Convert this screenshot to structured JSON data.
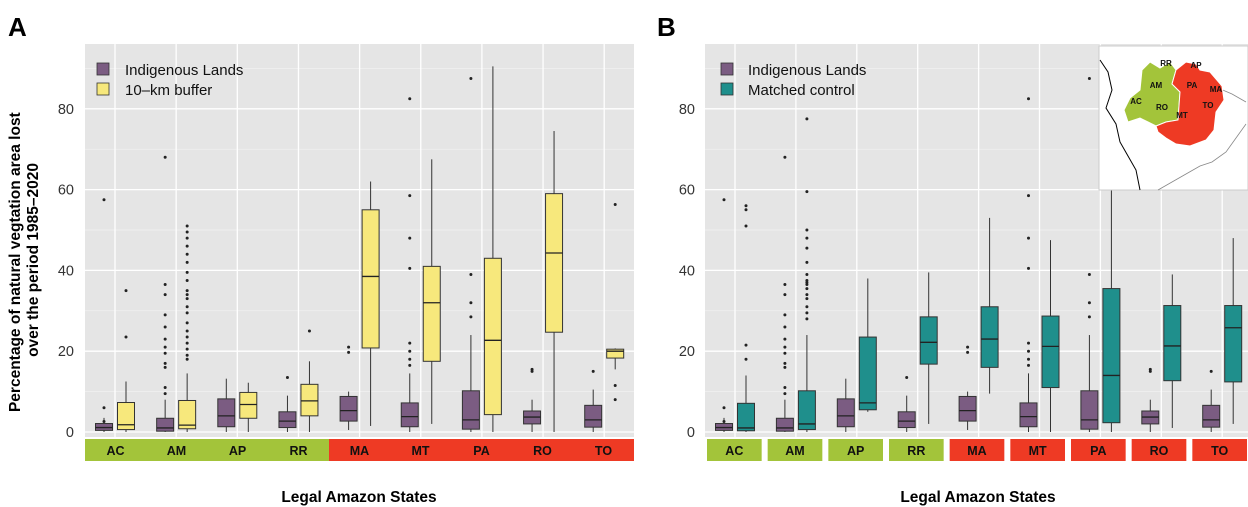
{
  "chart_data": [
    {
      "type": "box",
      "panel_label": "A",
      "ylabel": "Percentage of natural vegtation area lost\nover the period 1985–2020",
      "xlabel": "Legal Amazon States",
      "ylim": [
        0,
        92
      ],
      "yticks": [
        0,
        20,
        40,
        60,
        80
      ],
      "grid": true,
      "legend_position": "top-left",
      "states": [
        {
          "name": "AC",
          "region_color": "#a3c43a"
        },
        {
          "name": "AM",
          "region_color": "#a3c43a"
        },
        {
          "name": "AP",
          "region_color": "#a3c43a"
        },
        {
          "name": "RR",
          "region_color": "#a3c43a"
        },
        {
          "name": "MA",
          "region_color": "#ee3a24"
        },
        {
          "name": "MT",
          "region_color": "#ee3a24"
        },
        {
          "name": "PA",
          "region_color": "#ee3a24"
        },
        {
          "name": "RO",
          "region_color": "#ee3a24"
        },
        {
          "name": "TO",
          "region_color": "#ee3a24"
        }
      ],
      "series": [
        {
          "name": "Indigenous Lands",
          "color": "#7b5c82",
          "boxes": [
            {
              "min": 0,
              "q1": 0.4,
              "median": 1.1,
              "q3": 2.1,
              "max": 3.5,
              "outliers": [
                57.5,
                6.0,
                2.6
              ]
            },
            {
              "min": 0,
              "q1": 0.2,
              "median": 1.0,
              "q3": 3.4,
              "max": 8.0,
              "outliers": [
                68,
                36.5,
                34,
                29,
                26,
                23,
                21,
                19.5,
                17,
                16,
                11,
                9.5
              ]
            },
            {
              "min": 0,
              "q1": 1.3,
              "median": 4.0,
              "q3": 8.2,
              "max": 13.2,
              "outliers": []
            },
            {
              "min": 0,
              "q1": 1.1,
              "median": 2.7,
              "q3": 5.0,
              "max": 9.0,
              "outliers": [
                13.5
              ]
            },
            {
              "min": 0.5,
              "q1": 2.7,
              "median": 5.3,
              "q3": 8.8,
              "max": 10.0,
              "outliers": [
                21,
                19.7
              ]
            },
            {
              "min": 0,
              "q1": 1.3,
              "median": 3.8,
              "q3": 7.2,
              "max": 14.5,
              "outliers": [
                82.5,
                58.5,
                48,
                40.5,
                22,
                20,
                18,
                16.5
              ]
            },
            {
              "min": 0,
              "q1": 0.7,
              "median": 3.0,
              "q3": 10.2,
              "max": 24.0,
              "outliers": [
                87.5,
                39,
                32,
                28.5
              ]
            },
            {
              "min": 0,
              "q1": 2.0,
              "median": 3.7,
              "q3": 5.2,
              "max": 8.0,
              "outliers": [
                15.5,
                15.0
              ]
            },
            {
              "min": 0,
              "q1": 1.2,
              "median": 3.0,
              "q3": 6.6,
              "max": 10.5,
              "outliers": [
                15.0
              ]
            }
          ]
        },
        {
          "name": "10–km buffer",
          "color": "#f7e87c",
          "boxes": [
            {
              "min": 0,
              "q1": 0.6,
              "median": 1.8,
              "q3": 7.3,
              "max": 12.5,
              "outliers": [
                35,
                23.5
              ]
            },
            {
              "min": 0,
              "q1": 0.8,
              "median": 1.7,
              "q3": 7.8,
              "max": 14.5,
              "outliers": [
                51,
                49.5,
                48,
                46,
                44,
                42,
                39.5,
                37.5,
                35,
                34,
                33,
                31,
                29.5,
                27,
                25,
                23.5,
                22,
                20.5,
                19,
                18
              ]
            },
            {
              "min": 0,
              "q1": 3.4,
              "median": 6.8,
              "q3": 9.8,
              "max": 12.2,
              "outliers": []
            },
            {
              "min": 0,
              "q1": 4.0,
              "median": 7.7,
              "q3": 11.8,
              "max": 17.5,
              "outliers": [
                25
              ]
            },
            {
              "min": 1.5,
              "q1": 20.8,
              "median": 38.5,
              "q3": 55.0,
              "max": 62.0,
              "outliers": []
            },
            {
              "min": 2,
              "q1": 17.5,
              "median": 32.0,
              "q3": 41.0,
              "max": 67.5,
              "outliers": []
            },
            {
              "min": 0,
              "q1": 4.3,
              "median": 22.7,
              "q3": 43.0,
              "max": 90.5,
              "outliers": []
            },
            {
              "min": 0,
              "q1": 24.7,
              "median": 44.3,
              "q3": 59.0,
              "max": 74.5,
              "outliers": []
            },
            {
              "min": 15.5,
              "q1": 18.3,
              "median": 20.0,
              "q3": 20.5,
              "max": 20.7,
              "outliers": [
                56.3,
                11.5,
                8.0
              ]
            }
          ]
        }
      ]
    },
    {
      "type": "box",
      "panel_label": "B",
      "xlabel": "Legal Amazon States",
      "ylim": [
        0,
        92
      ],
      "yticks": [
        0,
        20,
        40,
        60,
        80
      ],
      "grid": true,
      "legend_position": "top-left",
      "inset": "map of Brazil",
      "states": [
        {
          "name": "AC",
          "region_color": "#a3c43a"
        },
        {
          "name": "AM",
          "region_color": "#a3c43a"
        },
        {
          "name": "AP",
          "region_color": "#a3c43a"
        },
        {
          "name": "RR",
          "region_color": "#a3c43a"
        },
        {
          "name": "MA",
          "region_color": "#ee3a24"
        },
        {
          "name": "MT",
          "region_color": "#ee3a24"
        },
        {
          "name": "PA",
          "region_color": "#ee3a24"
        },
        {
          "name": "RO",
          "region_color": "#ee3a24"
        },
        {
          "name": "TO",
          "region_color": "#ee3a24"
        }
      ],
      "series": [
        {
          "name": "Indigenous Lands",
          "color": "#7b5c82",
          "boxes": [
            {
              "min": 0,
              "q1": 0.4,
              "median": 1.1,
              "q3": 2.1,
              "max": 3.5,
              "outliers": [
                57.5,
                6.0,
                2.6
              ]
            },
            {
              "min": 0,
              "q1": 0.2,
              "median": 1.0,
              "q3": 3.4,
              "max": 8.0,
              "outliers": [
                68,
                36.5,
                34,
                29,
                26,
                23,
                21,
                19.5,
                17,
                16,
                11,
                9.5
              ]
            },
            {
              "min": 0,
              "q1": 1.3,
              "median": 4.0,
              "q3": 8.2,
              "max": 13.2,
              "outliers": []
            },
            {
              "min": 0,
              "q1": 1.1,
              "median": 2.7,
              "q3": 5.0,
              "max": 9.0,
              "outliers": [
                13.5
              ]
            },
            {
              "min": 0.5,
              "q1": 2.7,
              "median": 5.3,
              "q3": 8.8,
              "max": 10.0,
              "outliers": [
                21,
                19.7
              ]
            },
            {
              "min": 0,
              "q1": 1.3,
              "median": 3.8,
              "q3": 7.2,
              "max": 14.5,
              "outliers": [
                82.5,
                58.5,
                48,
                40.5,
                22,
                20,
                18,
                16.5
              ]
            },
            {
              "min": 0,
              "q1": 0.7,
              "median": 3.0,
              "q3": 10.2,
              "max": 24.0,
              "outliers": [
                87.5,
                39,
                32,
                28.5
              ]
            },
            {
              "min": 0,
              "q1": 2.0,
              "median": 3.7,
              "q3": 5.2,
              "max": 8.0,
              "outliers": [
                15.5,
                15.0
              ]
            },
            {
              "min": 0,
              "q1": 1.2,
              "median": 3.0,
              "q3": 6.6,
              "max": 10.5,
              "outliers": [
                15.0
              ]
            }
          ]
        },
        {
          "name": "Matched control",
          "color": "#1f8f8c",
          "boxes": [
            {
              "min": 0,
              "q1": 0.3,
              "median": 1.0,
              "q3": 7.1,
              "max": 14.0,
              "outliers": [
                56.0,
                55.0,
                51.0,
                21.5,
                18.0
              ]
            },
            {
              "min": 0,
              "q1": 0.6,
              "median": 2.0,
              "q3": 10.2,
              "max": 24.0,
              "outliers": [
                77.5,
                59.5,
                50,
                48,
                45.5,
                42,
                39,
                37.5,
                37,
                36.5,
                35.5,
                34,
                33,
                31,
                29.5,
                28
              ]
            },
            {
              "min": 5.0,
              "q1": 5.5,
              "median": 7.2,
              "q3": 23.5,
              "max": 38.0,
              "outliers": []
            },
            {
              "min": 2,
              "q1": 16.8,
              "median": 22.2,
              "q3": 28.5,
              "max": 39.5,
              "outliers": []
            },
            {
              "min": 9.5,
              "q1": 16.0,
              "median": 23.0,
              "q3": 31.0,
              "max": 53.0,
              "outliers": []
            },
            {
              "min": 0,
              "q1": 11.0,
              "median": 21.2,
              "q3": 28.7,
              "max": 47.5,
              "outliers": []
            },
            {
              "min": 0,
              "q1": 2.3,
              "median": 14.0,
              "q3": 35.5,
              "max": 62.5,
              "outliers": []
            },
            {
              "min": 1,
              "q1": 12.7,
              "median": 21.3,
              "q3": 31.3,
              "max": 39.0,
              "outliers": []
            },
            {
              "min": 2,
              "q1": 12.4,
              "median": 25.8,
              "q3": 31.3,
              "max": 48.0,
              "outliers": []
            }
          ]
        }
      ],
      "inset_labels": [
        "RR",
        "AP",
        "AM",
        "PA",
        "MA",
        "AC",
        "RO",
        "TO",
        "MT"
      ]
    }
  ]
}
